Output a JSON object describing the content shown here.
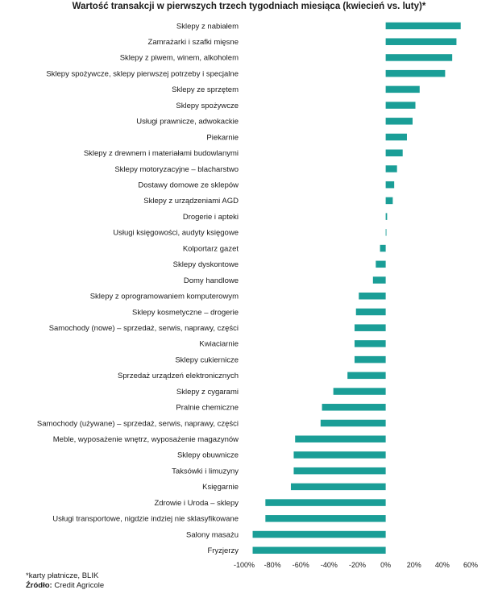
{
  "chart_data": {
    "type": "bar",
    "orientation": "horizontal",
    "title": "Wartość transakcji w pierwszych trzech tygodniach miesiąca (kwiecień vs. luty)*",
    "categories": [
      "Sklepy z nabiałem",
      "Zamrażarki i szafki mięsne",
      "Sklepy z piwem, winem, alkoholem",
      "Sklepy spożywcze, sklepy pierwszej potrzeby i specjalne",
      "Sklepy ze sprzętem",
      "Sklepy spożywcze",
      "Usługi prawnicze, adwokackie",
      "Piekarnie",
      "Sklepy z drewnem i materiałami budowlanymi",
      "Sklepy motoryzacyjne – blacharstwo",
      "Dostawy domowe ze sklepów",
      "Sklepy z urządzeniami AGD",
      "Drogerie i apteki",
      "Usługi księgowości, audyty księgowe",
      "Kolportarz gazet",
      "Sklepy dyskontowe",
      "Domy handlowe",
      "Sklepy z oprogramowaniem komputerowym",
      "Sklepy kosmetyczne – drogerie",
      "Samochody (nowe) – sprzedaż, serwis, naprawy, części",
      "Kwiaciarnie",
      "Sklepy cukiernicze",
      "Sprzedaż urządzeń elektronicznych",
      "Sklepy z cygarami",
      "Pralnie chemiczne",
      "Samochody (używane) – sprzedaż, serwis, naprawy, części",
      "Meble, wyposażenie wnętrz, wyposażenie magazynów",
      "Sklepy obuwnicze",
      "Taksówki i limuzyny",
      "Księgarnie",
      "Zdrowie i Uroda – sklepy",
      "Usługi transportowe, nigdzie indziej nie sklasyfikowane",
      "Salony masażu",
      "Fryzjerzy"
    ],
    "values": [
      53,
      50,
      47,
      42,
      24,
      21,
      19,
      15,
      12,
      8,
      6,
      5,
      1,
      0.5,
      -4,
      -7,
      -9,
      -19,
      -21,
      -22,
      -22,
      -22,
      -27,
      -37,
      -45,
      -46,
      -64,
      -65,
      -65,
      -67,
      -85,
      -85,
      -94,
      -94
    ],
    "xlim": [
      -100,
      60
    ],
    "xticks": [
      -100,
      -80,
      -60,
      -40,
      -20,
      0,
      20,
      40,
      60
    ],
    "xtick_labels": [
      "-100%",
      "-80%",
      "-60%",
      "-40%",
      "-20%",
      "0%",
      "20%",
      "40%",
      "60%"
    ],
    "xlabel": "",
    "ylabel": "",
    "grid": false,
    "bar_color": "#1a9e97"
  },
  "footnotes": {
    "note": "*karty płatnicze, BLIK",
    "source_label": "Źródło:",
    "source_value": "Credit Agricole"
  }
}
